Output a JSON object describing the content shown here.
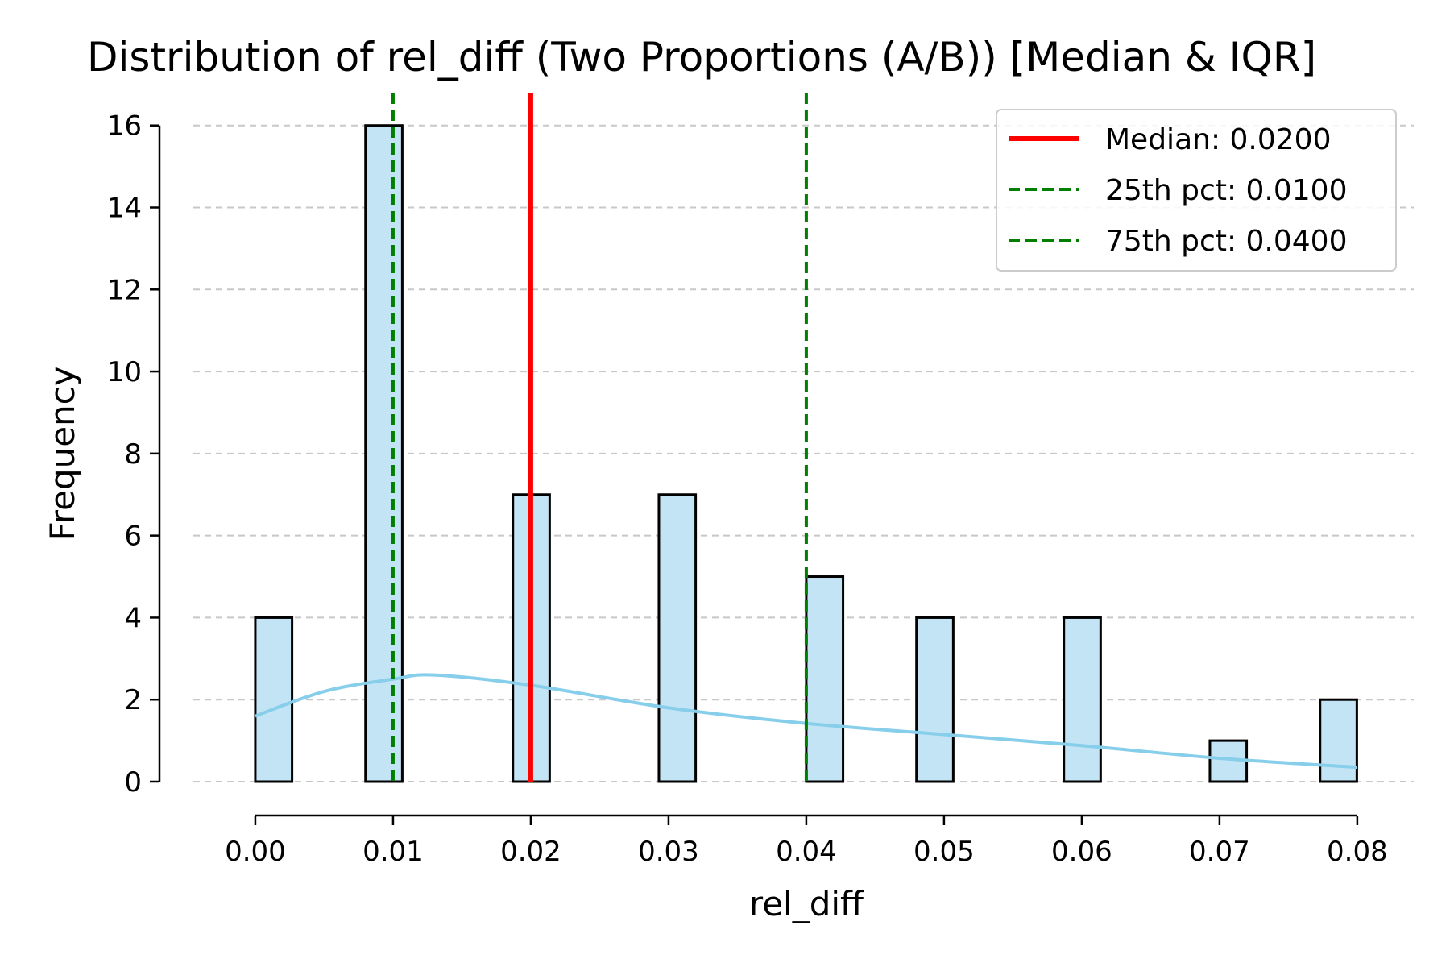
{
  "chart_data": {
    "type": "bar",
    "title": "Distribution of rel_diff (Two Proportions (A/B)) [Median & IQR]",
    "xlabel": "rel_diff",
    "ylabel": "Frequency",
    "xlim": [
      -0.0045,
      0.0841
    ],
    "ylim": [
      0,
      16.8
    ],
    "x_ticks": [
      "0.00",
      "0.01",
      "0.02",
      "0.03",
      "0.04",
      "0.05",
      "0.06",
      "0.07",
      "0.08"
    ],
    "y_ticks": [
      "0",
      "2",
      "4",
      "6",
      "8",
      "10",
      "12",
      "14",
      "16"
    ],
    "grid": "horizontal dashed",
    "bin_width": 0.00267,
    "bars": [
      {
        "x_start": 0.0,
        "value": 4
      },
      {
        "x_start": 0.008,
        "value": 16
      },
      {
        "x_start": 0.0187,
        "value": 7
      },
      {
        "x_start": 0.0293,
        "value": 7
      },
      {
        "x_start": 0.04,
        "value": 5
      },
      {
        "x_start": 0.048,
        "value": 4
      },
      {
        "x_start": 0.0587,
        "value": 4
      },
      {
        "x_start": 0.0693,
        "value": 1
      },
      {
        "x_start": 0.0773,
        "value": 2
      }
    ],
    "kde": {
      "x": [
        0.0,
        0.005,
        0.01,
        0.013,
        0.02,
        0.03,
        0.04,
        0.05,
        0.06,
        0.07,
        0.08
      ],
      "y": [
        1.6,
        2.2,
        2.5,
        2.6,
        2.35,
        1.8,
        1.42,
        1.15,
        0.88,
        0.57,
        0.35
      ]
    },
    "reference_lines": [
      {
        "name": "Median: 0.0200",
        "x": 0.02,
        "style": "solid",
        "color": "#ff0000"
      },
      {
        "name": "25th pct: 0.0100",
        "x": 0.01,
        "style": "dashed",
        "color": "#007f00"
      },
      {
        "name": "75th pct: 0.0400",
        "x": 0.04,
        "style": "dashed",
        "color": "#007f00"
      }
    ],
    "legend": "top-right",
    "colors": {
      "bar_fill": "#c2e4f4",
      "bar_edge": "#000000",
      "kde": "#87ceeb",
      "grid": "#c8c8c8"
    }
  }
}
